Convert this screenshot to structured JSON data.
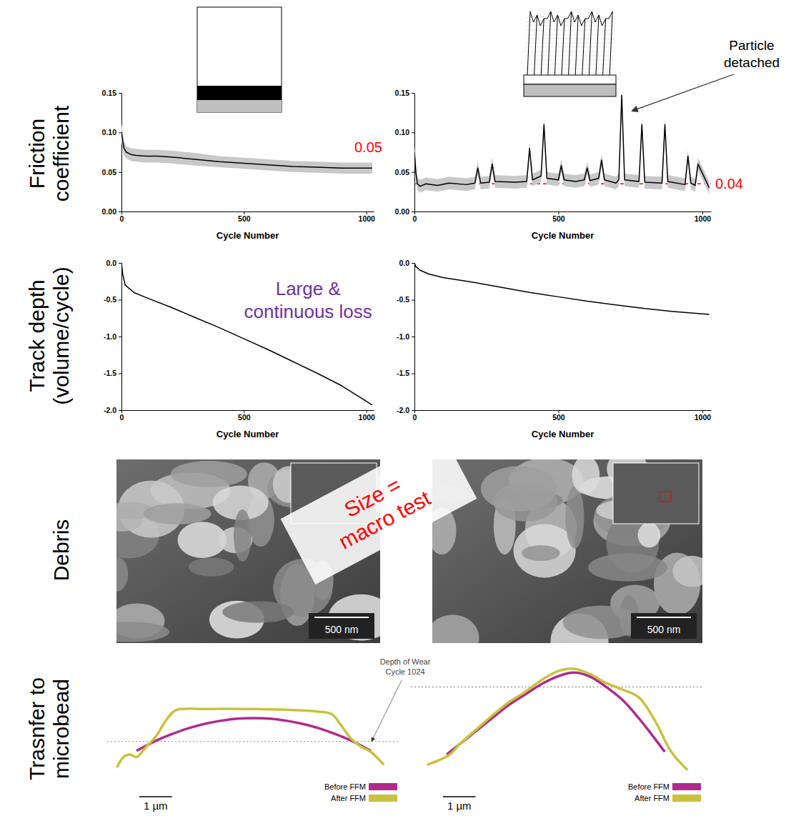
{
  "row_labels": [
    [
      "Friction",
      "coefficient"
    ],
    [
      "Track depth",
      "(volume/cycle)"
    ],
    [
      "Debris"
    ],
    [
      "Trasnfer to",
      "microbead"
    ]
  ],
  "chart_data": [
    {
      "type": "line",
      "xlabel": "Cycle Number",
      "xlim": [
        0,
        1030
      ],
      "xticks": [
        0,
        500,
        1000
      ],
      "ylim": [
        0,
        0.15
      ],
      "yticks": [
        {
          "value": 0,
          "label": "0.00"
        },
        0.05,
        {
          "value": 0.1,
          "label": "0.10"
        },
        0.15
      ],
      "x": [
        0,
        5,
        10,
        20,
        40,
        60,
        100,
        150,
        200,
        300,
        400,
        500,
        600,
        700,
        800,
        900,
        1024
      ],
      "series": [
        {
          "color": "#000000",
          "values": [
            0.1,
            0.09,
            0.08,
            0.075,
            0.072,
            0.071,
            0.07,
            0.07,
            0.069,
            0.066,
            0.063,
            0.061,
            0.059,
            0.057,
            0.056,
            0.055,
            0.055
          ],
          "errors": [
            0.012,
            0.01,
            0.009,
            0.008,
            0.008,
            0.008,
            0.008,
            0.008,
            0.008,
            0.008,
            0.007,
            0.007,
            0.007,
            0.007,
            0.007,
            0.007,
            0.007
          ]
        }
      ],
      "annotations": [
        {
          "text": "0.05",
          "color": "#ff0000"
        }
      ]
    },
    {
      "type": "line",
      "xlabel": "Cycle Number",
      "xlim": [
        0,
        1030
      ],
      "xticks": [
        0,
        500,
        1000
      ],
      "ylim": [
        0,
        0.15
      ],
      "yticks": [
        {
          "value": 0,
          "label": "0.00"
        },
        0.05,
        {
          "value": 0.1,
          "label": "0.10"
        },
        0.15
      ],
      "x": [
        0,
        5,
        10,
        20,
        40,
        80,
        120,
        180,
        210,
        220,
        230,
        260,
        270,
        280,
        350,
        390,
        400,
        410,
        440,
        450,
        460,
        500,
        510,
        520,
        560,
        590,
        600,
        610,
        640,
        650,
        660,
        700,
        710,
        720,
        730,
        780,
        790,
        800,
        860,
        870,
        880,
        940,
        950,
        960,
        975,
        985,
        1024
      ],
      "series": [
        {
          "color": "#000000",
          "values": [
            0.075,
            0.05,
            0.035,
            0.032,
            0.035,
            0.033,
            0.036,
            0.034,
            0.036,
            0.055,
            0.036,
            0.037,
            0.06,
            0.038,
            0.037,
            0.038,
            0.08,
            0.04,
            0.045,
            0.11,
            0.042,
            0.04,
            0.058,
            0.04,
            0.038,
            0.04,
            0.055,
            0.039,
            0.042,
            0.065,
            0.04,
            0.036,
            0.04,
            0.147,
            0.04,
            0.038,
            0.11,
            0.037,
            0.036,
            0.11,
            0.038,
            0.034,
            0.07,
            0.036,
            0.033,
            0.06,
            0.03
          ],
          "errors": [
            0.008,
            0.008,
            0.008,
            0.008,
            0.008,
            0.008,
            0.008,
            0.008,
            0.008,
            0.008,
            0.008,
            0.008,
            0.008,
            0.008,
            0.008,
            0.008,
            0.008,
            0.008,
            0.008,
            0.008,
            0.008,
            0.008,
            0.008,
            0.008,
            0.008,
            0.008,
            0.008,
            0.008,
            0.008,
            0.008,
            0.008,
            0.008,
            0.008,
            0.008,
            0.008,
            0.008,
            0.008,
            0.008,
            0.008,
            0.008,
            0.008,
            0.008,
            0.008,
            0.008,
            0.008,
            0.008,
            0.008
          ]
        }
      ],
      "hline": {
        "value": 0.035,
        "label": "0.04",
        "color": "#ff0000",
        "line_style": "dashed"
      },
      "annotations": [
        {
          "text": [
            "Particle",
            "detached"
          ],
          "x": 720,
          "y": 0.147
        }
      ]
    },
    {
      "type": "line",
      "xlabel": "Cycle Number",
      "xlim": [
        0,
        1030
      ],
      "xticks": [
        0,
        500,
        1000
      ],
      "ylim": [
        -2,
        0
      ],
      "yticks": [
        {
          "value": 0,
          "label": "0.0"
        },
        -0.5,
        {
          "value": -1,
          "label": "-1.0"
        },
        -1.5,
        {
          "value": -2,
          "label": "-2.0"
        }
      ],
      "x": [
        0,
        5,
        15,
        50,
        100,
        200,
        300,
        400,
        500,
        600,
        700,
        800,
        900,
        1024
      ],
      "series": [
        {
          "color": "#000000",
          "values": [
            0,
            -0.15,
            -0.3,
            -0.4,
            -0.47,
            -0.6,
            -0.74,
            -0.88,
            -1.03,
            -1.18,
            -1.34,
            -1.5,
            -1.67,
            -1.93
          ]
        }
      ],
      "annotations": [
        {
          "text": [
            "Large &",
            "continuous loss"
          ],
          "color": "#7030a0"
        }
      ]
    },
    {
      "type": "line",
      "xlabel": "Cycle Number",
      "xlim": [
        0,
        1030
      ],
      "xticks": [
        0,
        500,
        1000
      ],
      "ylim": [
        -2,
        0
      ],
      "yticks": [
        {
          "value": 0,
          "label": "0.0"
        },
        -0.5,
        {
          "value": -1,
          "label": "-1.0"
        },
        -1.5,
        {
          "value": -2,
          "label": "-2.0"
        }
      ],
      "x": [
        0,
        5,
        20,
        50,
        100,
        200,
        300,
        400,
        500,
        600,
        700,
        800,
        900,
        1024
      ],
      "series": [
        {
          "color": "#000000",
          "values": [
            0,
            -0.05,
            -0.1,
            -0.15,
            -0.2,
            -0.26,
            -0.33,
            -0.4,
            -0.46,
            -0.52,
            -0.57,
            -0.62,
            -0.66,
            -0.7
          ]
        }
      ]
    },
    {
      "type": "line",
      "tick_labels": false,
      "xlim": [
        -4.5,
        4.5
      ],
      "ylim": [
        -0.8,
        3.6
      ],
      "legend": "bottom",
      "series": [
        {
          "name": "Before FFM",
          "color": "#b02a8c",
          "x": [
            -3.6,
            -3,
            -2.5,
            -2,
            -1.5,
            -1,
            -0.5,
            0,
            0.5,
            1,
            1.5,
            2,
            2.5,
            3,
            3.6
          ],
          "values": [
            0.14,
            0.53,
            0.79,
            1.01,
            1.18,
            1.3,
            1.38,
            1.4,
            1.38,
            1.3,
            1.18,
            1.01,
            0.79,
            0.53,
            0.14
          ]
        },
        {
          "name": "After FFM",
          "color": "#c9c23a",
          "x": [
            -4.2,
            -4,
            -3.8,
            -3.6,
            -3.3,
            -3,
            -2.7,
            -2.4,
            -1.5,
            0,
            1,
            2,
            2.4,
            2.7,
            3,
            3.3,
            3.6,
            4
          ],
          "values": [
            -0.5,
            -0.1,
            0,
            -0.1,
            0.3,
            0.7,
            1.3,
            1.7,
            1.75,
            1.75,
            1.72,
            1.65,
            1.55,
            1.1,
            0.6,
            0.3,
            0.1,
            -0.4
          ]
        }
      ],
      "hline": {
        "value": 0.5,
        "label": [
          "Depth of Wear",
          "Cycle 1024"
        ],
        "line_style": "dotted"
      },
      "scale_bar": {
        "value": 1,
        "label": "1 µm"
      }
    },
    {
      "type": "line",
      "tick_labels": false,
      "xlim": [
        -4.5,
        4.5
      ],
      "ylim": [
        -0.8,
        3.6
      ],
      "legend": "bottom",
      "series": [
        {
          "name": "Before FFM",
          "color": "#b02a8c",
          "x": [
            -3.4,
            -3,
            -2.5,
            -2,
            -1.5,
            -1,
            -0.5,
            0,
            0.5,
            1,
            1.5,
            2,
            2.5,
            3,
            3.3
          ],
          "values": [
            0,
            0.4,
            0.9,
            1.4,
            1.9,
            2.3,
            2.7,
            3,
            3.15,
            3,
            2.6,
            2.1,
            1.4,
            0.6,
            0.1
          ]
        },
        {
          "name": "After FFM",
          "color": "#c9c23a",
          "x": [
            -4,
            -3.6,
            -3.3,
            -3,
            -2.5,
            -2,
            -1.5,
            -1,
            -0.5,
            0,
            0.5,
            1,
            1.5,
            2,
            2.5,
            3,
            3.5,
            4
          ],
          "values": [
            -0.4,
            -0.2,
            0,
            0.4,
            0.95,
            1.5,
            2,
            2.4,
            2.85,
            3.2,
            3.3,
            3.1,
            2.75,
            2.5,
            2.2,
            1.3,
            0.1,
            -0.6
          ]
        }
      ],
      "hline": {
        "value": 2.6,
        "line_style": "dotted"
      },
      "scale_bar": {
        "value": 1,
        "label": "1 µm"
      }
    }
  ],
  "debris": {
    "scale_bars": [
      "500 nm",
      "500 nm"
    ],
    "overlay": {
      "text": [
        "Size =",
        "macro test"
      ],
      "color": "#ff0000"
    }
  }
}
